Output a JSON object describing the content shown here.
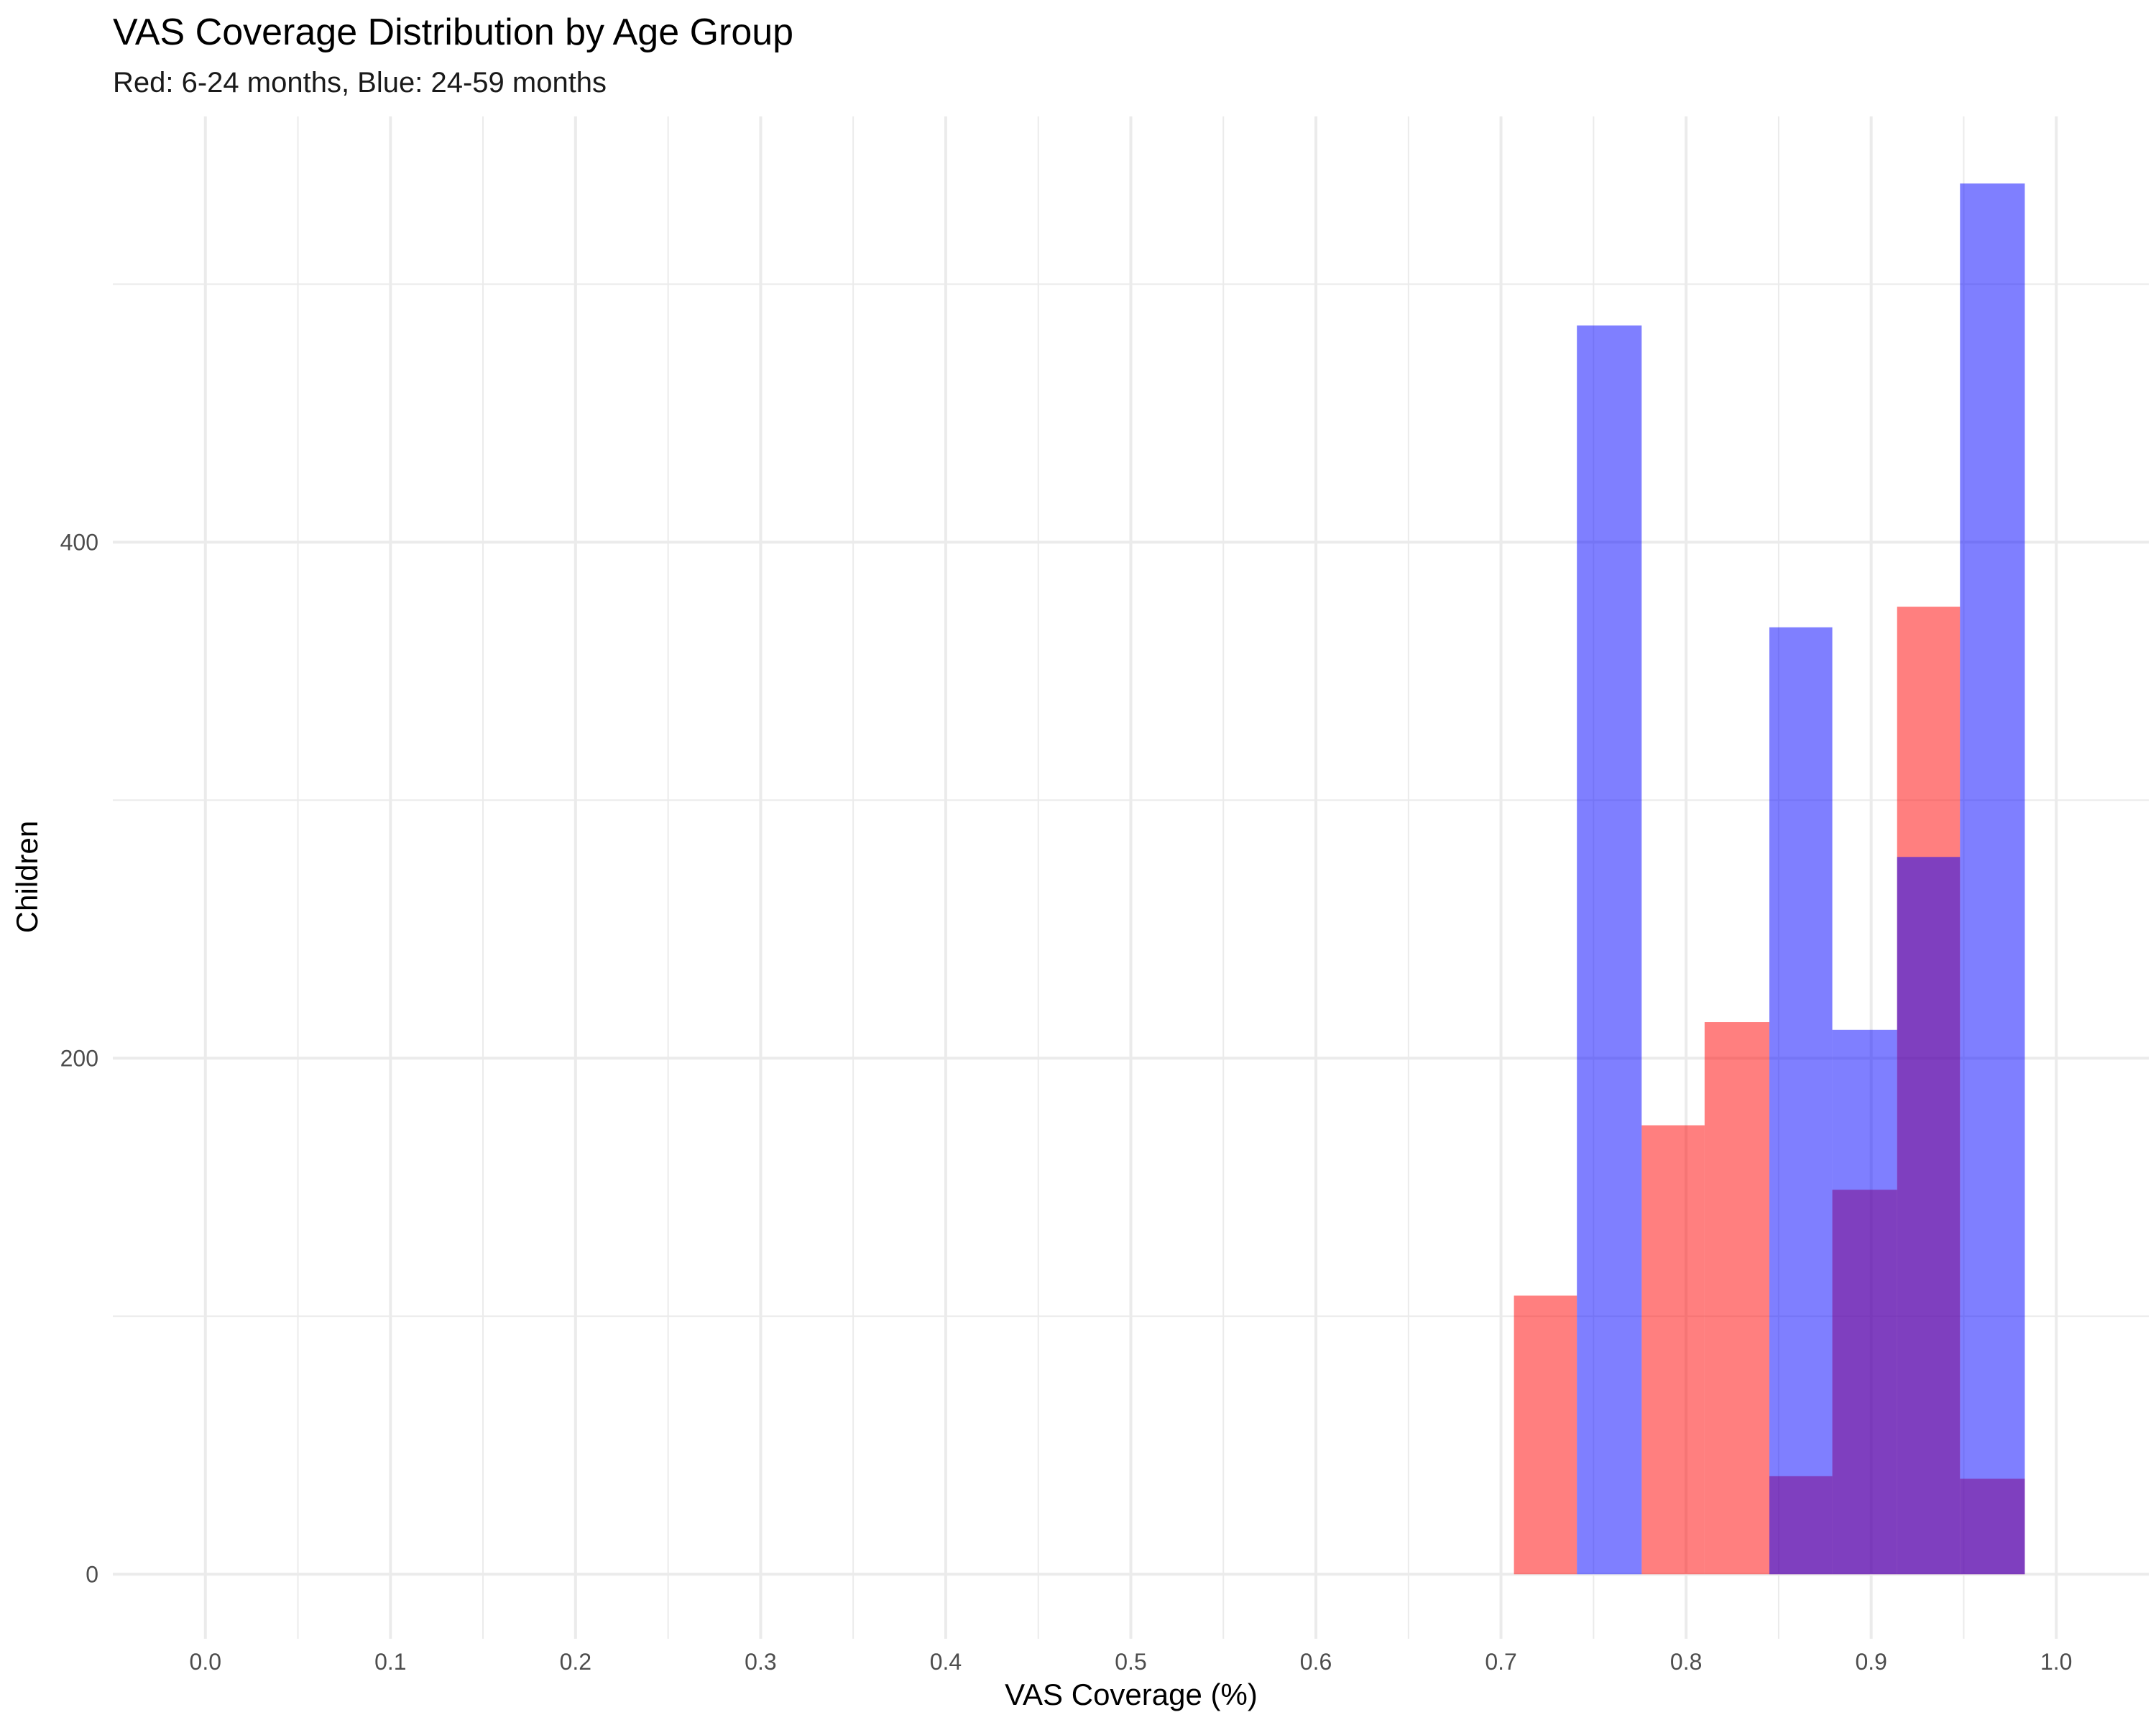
{
  "chart_data": {
    "type": "bar",
    "title": "VAS Coverage Distribution by Age Group",
    "subtitle": "Red: 6-24 months, Blue: 24-59 months",
    "xlabel": "VAS Coverage (%)",
    "ylabel": "Children",
    "xlim": [
      -0.05,
      1.05
    ],
    "ylim": [
      -25,
      565
    ],
    "x_ticks": [
      "0.0",
      "0.1",
      "0.2",
      "0.3",
      "0.4",
      "0.5",
      "0.6",
      "0.7",
      "0.8",
      "0.9",
      "1.0"
    ],
    "y_ticks": [
      "0",
      "200",
      "400"
    ],
    "grid": true,
    "bin_width": 0.0345,
    "series": [
      {
        "color": "#ff0000",
        "bins": [
          {
            "x0": 0.707,
            "x1": 0.741,
            "count": 108
          },
          {
            "x0": 0.776,
            "x1": 0.81,
            "count": 174
          },
          {
            "x0": 0.81,
            "x1": 0.845,
            "count": 214
          },
          {
            "x0": 0.845,
            "x1": 0.879,
            "count": 38
          },
          {
            "x0": 0.879,
            "x1": 0.914,
            "count": 149
          },
          {
            "x0": 0.914,
            "x1": 0.948,
            "count": 375
          },
          {
            "x0": 0.948,
            "x1": 0.983,
            "count": 37
          }
        ]
      },
      {
        "color": "#0000ff",
        "bins": [
          {
            "x0": 0.741,
            "x1": 0.776,
            "count": 484
          },
          {
            "x0": 0.845,
            "x1": 0.879,
            "count": 367
          },
          {
            "x0": 0.879,
            "x1": 0.914,
            "count": 211
          },
          {
            "x0": 0.914,
            "x1": 0.948,
            "count": 278
          },
          {
            "x0": 0.948,
            "x1": 0.983,
            "count": 539
          }
        ]
      }
    ]
  }
}
